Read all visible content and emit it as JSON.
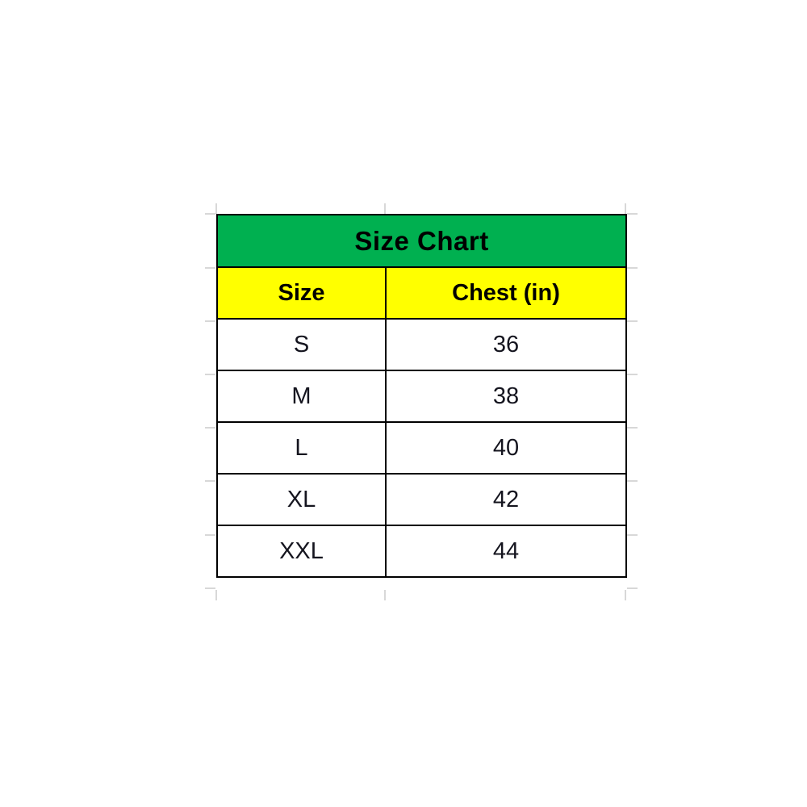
{
  "chart_data": {
    "type": "table",
    "title": "Size Chart",
    "columns": [
      "Size",
      "Chest (in)"
    ],
    "rows": [
      [
        "S",
        "36"
      ],
      [
        "M",
        "38"
      ],
      [
        "L",
        "40"
      ],
      [
        "XL",
        "42"
      ],
      [
        "XXL",
        "44"
      ]
    ],
    "layout_hints": {
      "title_row_merged": true,
      "gridlines_outside_table": true
    }
  },
  "colors": {
    "title_bg": "#00B050",
    "header_bg": "#FFFF00",
    "cell_bg": "#FFFFFF",
    "border": "#000000",
    "gridline": "#D8D8D8",
    "title_text": "#000000",
    "data_text": "#15151F"
  }
}
